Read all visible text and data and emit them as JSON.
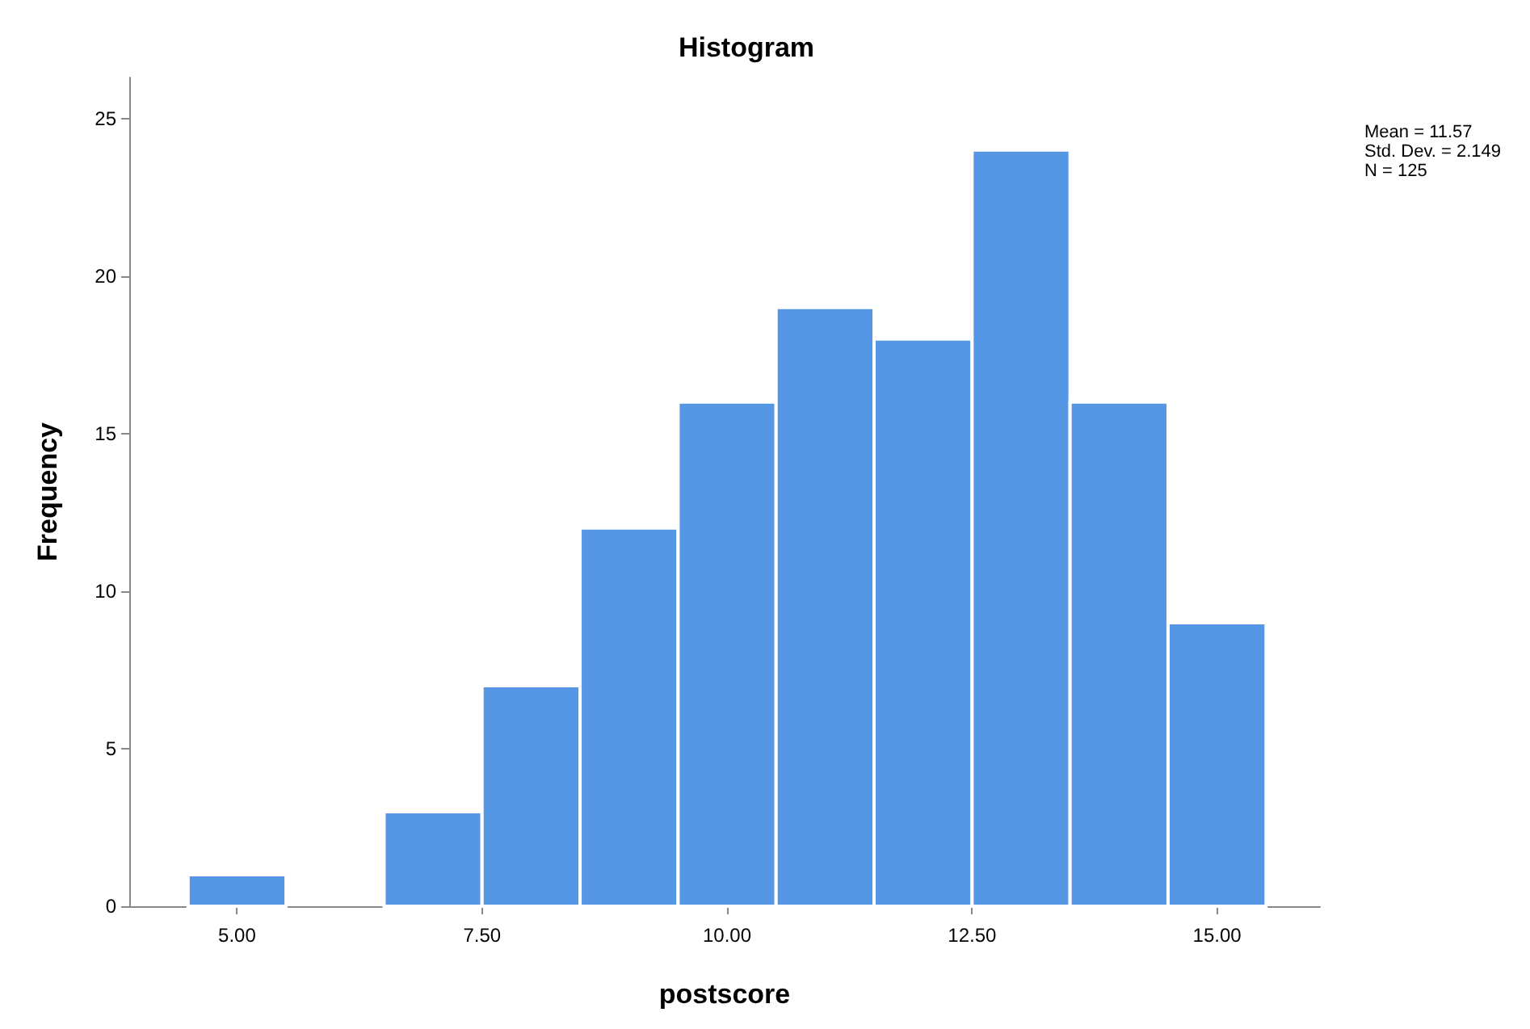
{
  "chart_data": {
    "type": "histogram",
    "title": "Histogram",
    "xlabel": "postscore",
    "ylabel": "Frequency",
    "bins": [
      4.5,
      5.5,
      6.5,
      7.5,
      8.5,
      9.5,
      10.5,
      11.5,
      12.5,
      13.5,
      14.5,
      15.5
    ],
    "values": [
      1,
      0,
      3,
      7,
      12,
      16,
      19,
      18,
      24,
      16,
      9
    ],
    "color": "#5596e5",
    "xlim": [
      3.9,
      16.05
    ],
    "xticks": [
      {
        "value": 5,
        "label": "5.00"
      },
      {
        "value": 7.5,
        "label": "7.50"
      },
      {
        "value": 10,
        "label": "10.00"
      },
      {
        "value": 12.5,
        "label": "12.50"
      },
      {
        "value": 15,
        "label": "15.00"
      }
    ],
    "ylim": [
      0,
      26.3
    ],
    "yticks": [
      0,
      5,
      10,
      15,
      20,
      25
    ],
    "grid": false,
    "annotations": [
      "Mean = 11.57\nStd. Dev. = 2.149\nN = 125"
    ]
  }
}
